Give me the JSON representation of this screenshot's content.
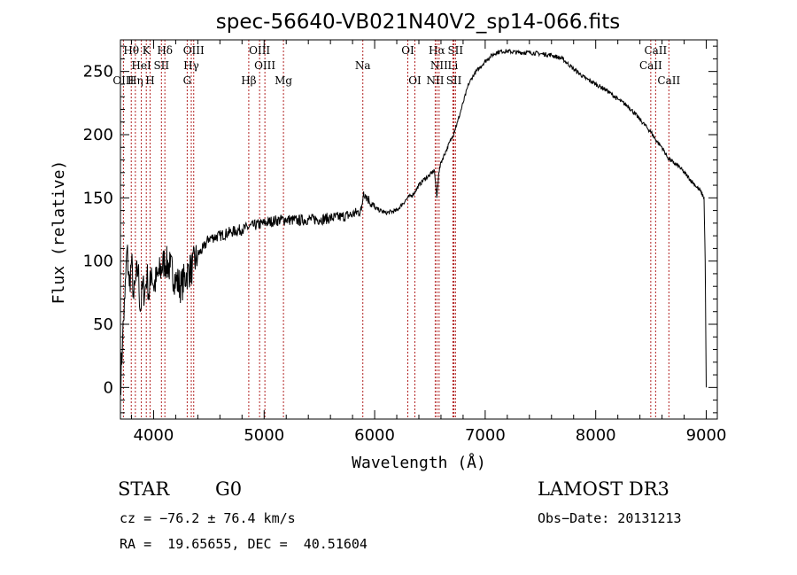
{
  "chart_data": {
    "type": "line",
    "title": "spec-56640-VB021N40V2_sp14-066.fits",
    "xlabel": "Wavelength (Å)",
    "ylabel": "Flux (relative)",
    "xlim": [
      3700,
      9100
    ],
    "ylim": [
      -25,
      275
    ],
    "xticks": [
      4000,
      5000,
      6000,
      7000,
      8000,
      9000
    ],
    "yticks": [
      0,
      50,
      100,
      150,
      200,
      250
    ],
    "series": [
      {
        "name": "flux",
        "x": [
          3700,
          3720,
          3740,
          3760,
          3780,
          3800,
          3820,
          3840,
          3860,
          3880,
          3900,
          3920,
          3940,
          3960,
          3980,
          4000,
          4050,
          4100,
          4150,
          4200,
          4250,
          4300,
          4350,
          4400,
          4450,
          4500,
          4600,
          4700,
          4800,
          4900,
          5000,
          5100,
          5200,
          5300,
          5400,
          5500,
          5600,
          5700,
          5800,
          5880,
          5900,
          5920,
          5950,
          6000,
          6100,
          6200,
          6300,
          6350,
          6400,
          6450,
          6500,
          6540,
          6563,
          6580,
          6600,
          6650,
          6700,
          6750,
          6800,
          6850,
          6900,
          6950,
          7000,
          7050,
          7100,
          7150,
          7200,
          7300,
          7400,
          7500,
          7600,
          7700,
          7800,
          7900,
          8000,
          8100,
          8200,
          8300,
          8400,
          8500,
          8550,
          8600,
          8650,
          8700,
          8750,
          8800,
          8850,
          8900,
          8950,
          8980,
          8990,
          9000
        ],
        "y": [
          0,
          40,
          70,
          110,
          80,
          100,
          70,
          85,
          95,
          60,
          80,
          75,
          90,
          70,
          95,
          80,
          90,
          100,
          95,
          85,
          80,
          90,
          95,
          105,
          110,
          118,
          120,
          123,
          125,
          128,
          130,
          132,
          133,
          132,
          133,
          133,
          134,
          135,
          137,
          140,
          155,
          152,
          148,
          142,
          138,
          140,
          150,
          153,
          160,
          165,
          168,
          172,
          150,
          170,
          178,
          188,
          198,
          210,
          225,
          240,
          248,
          253,
          258,
          262,
          265,
          266,
          266,
          265,
          265,
          264,
          263,
          260,
          252,
          245,
          240,
          235,
          228,
          222,
          212,
          202,
          195,
          190,
          182,
          178,
          175,
          170,
          165,
          160,
          155,
          150,
          100,
          0
        ]
      }
    ],
    "lines": [
      {
        "label": "Hθ",
        "wl": 3798,
        "row": 0
      },
      {
        "label": "K",
        "wl": 3934,
        "row": 0
      },
      {
        "label": "Hδ",
        "wl": 4102,
        "row": 0
      },
      {
        "label": "OIII",
        "wl": 4363,
        "row": 0
      },
      {
        "label": "OIII",
        "wl": 4959,
        "row": 0
      },
      {
        "label": "OI",
        "wl": 6300,
        "row": 0
      },
      {
        "label": "Hα",
        "wl": 6563,
        "row": 0
      },
      {
        "label": "SII",
        "wl": 6731,
        "row": 0
      },
      {
        "label": "CaII",
        "wl": 8542,
        "row": 0
      },
      {
        "label": "OIII",
        "wl": 3727,
        "row": 2
      },
      {
        "label": "Hη",
        "wl": 3835,
        "row": 2
      },
      {
        "label": "HeI",
        "wl": 3889,
        "row": 1
      },
      {
        "label": "H",
        "wl": 3968,
        "row": 2
      },
      {
        "label": "SII",
        "wl": 4071,
        "row": 1
      },
      {
        "label": "Hγ",
        "wl": 4341,
        "row": 1
      },
      {
        "label": "G",
        "wl": 4304,
        "row": 2
      },
      {
        "label": "Hβ",
        "wl": 4861,
        "row": 2
      },
      {
        "label": "OIII",
        "wl": 5007,
        "row": 1
      },
      {
        "label": "Mg",
        "wl": 5175,
        "row": 2
      },
      {
        "label": "Na",
        "wl": 5893,
        "row": 1
      },
      {
        "label": "OI",
        "wl": 6364,
        "row": 2
      },
      {
        "label": "NII",
        "wl": 6583,
        "row": 1
      },
      {
        "label": "NII",
        "wl": 6548,
        "row": 2
      },
      {
        "label": "Li",
        "wl": 6708,
        "row": 1
      },
      {
        "label": "SII",
        "wl": 6717,
        "row": 2
      },
      {
        "label": "CaII",
        "wl": 8498,
        "row": 1
      },
      {
        "label": "CaII",
        "wl": 8662,
        "row": 2
      }
    ]
  },
  "info": {
    "object": "STAR",
    "subclass": "G0",
    "survey": "LAMOST DR3",
    "cz": "cz = −76.2 ± 76.4 km/s",
    "obs_date": "Obs−Date: 20131213",
    "radec": "RA =  19.65655, DEC =  40.51604"
  }
}
